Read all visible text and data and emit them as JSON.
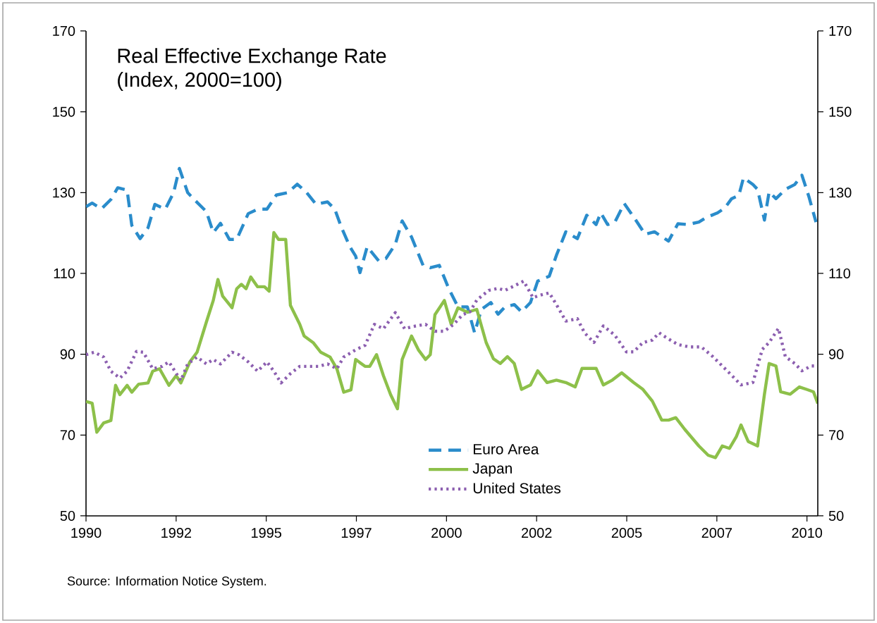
{
  "chart_data": {
    "type": "line",
    "title": "Real Effective Exchange Rate",
    "subtitle": "(Index, 2000=100)",
    "annotations": [
      "Source:  Information Notice System."
    ],
    "xlim": [
      1990,
      2010.3
    ],
    "xticks": [
      1990,
      {
        "value": 1992.5,
        "label": "1992"
      },
      1995,
      {
        "value": 1997.5,
        "label": "1997"
      },
      2000,
      {
        "value": 2002.5,
        "label": "2002"
      },
      2005,
      {
        "value": 2007.5,
        "label": "2007"
      },
      2010
    ],
    "ylim": [
      50,
      170
    ],
    "yticks": [
      50,
      70,
      90,
      110,
      130,
      150,
      170
    ],
    "y2lim": [
      50,
      170
    ],
    "y2ticks": [
      50,
      70,
      90,
      110,
      130,
      150,
      170
    ],
    "grid": false,
    "legend": "bottom",
    "marker": "none",
    "series": [
      {
        "name": "Euro Area",
        "color": "#2a8ccb",
        "line_style": "dashed",
        "x": [
          1990,
          1990.17,
          1990.43,
          1990.69,
          1990.88,
          1991.14,
          1991.27,
          1991.5,
          1991.72,
          1991.91,
          1992.2,
          1992.43,
          1992.59,
          1992.82,
          1993,
          1993.34,
          1993.53,
          1993.73,
          1993.98,
          1994.18,
          1994.5,
          1994.76,
          1995.02,
          1995.28,
          1995.6,
          1995.86,
          1996.12,
          1996.38,
          1996.7,
          1996.9,
          1997.09,
          1997.32,
          1997.48,
          1997.6,
          1997.8,
          1998.12,
          1998.32,
          1998.58,
          1998.77,
          1999.03,
          1999.35,
          1999.55,
          1999.8,
          2000.06,
          2000.32,
          2000.58,
          2000.78,
          2000.97,
          2001.23,
          2001.43,
          2001.62,
          2001.88,
          2002.08,
          2002.33,
          2002.53,
          2002.85,
          2003.05,
          2003.31,
          2003.63,
          2003.89,
          2004.15,
          2004.28,
          2004.47,
          2004.67,
          2004.93,
          2005.25,
          2005.51,
          2005.77,
          2006.16,
          2006.42,
          2006.68,
          2007,
          2007.2,
          2007.52,
          2007.72,
          2007.91,
          2008.11,
          2008.24,
          2008.5,
          2008.63,
          2008.82,
          2008.95,
          2009.14,
          2009.4,
          2009.66,
          2009.86,
          2010.05,
          2010.25
        ],
        "values": [
          126.5,
          127.4,
          126,
          128.3,
          131.2,
          130.6,
          121.9,
          118.6,
          121.3,
          127.1,
          125.9,
          130,
          136,
          130,
          128.3,
          125.3,
          120.1,
          122.4,
          118.4,
          118.4,
          124.8,
          125.9,
          125.9,
          129.4,
          130,
          132.1,
          130,
          127.1,
          127.7,
          125.9,
          121.3,
          116.6,
          114.3,
          110.2,
          116.6,
          113.1,
          113.7,
          117.2,
          123,
          119,
          112,
          111.4,
          112,
          106.3,
          101.7,
          101.7,
          95.3,
          101.1,
          102.8,
          99.9,
          101.7,
          102.3,
          100.5,
          102.8,
          108.1,
          109.3,
          114.5,
          120.3,
          118.6,
          124.4,
          122.1,
          125,
          122.1,
          122.7,
          127.3,
          123.2,
          119.7,
          120.3,
          118,
          122.3,
          122.1,
          122.7,
          123.8,
          125,
          126.2,
          128.5,
          129.3,
          133.7,
          132,
          130.8,
          123.2,
          130.2,
          128.5,
          130.8,
          132,
          134.3,
          129.1,
          122.7
        ]
      },
      {
        "name": "Japan",
        "color": "#8dc04a",
        "line_style": "solid",
        "x": [
          1990,
          1990.17,
          1990.3,
          1990.49,
          1990.69,
          1990.82,
          1990.94,
          1991.14,
          1991.27,
          1991.46,
          1991.72,
          1991.85,
          1992.04,
          1992.3,
          1992.5,
          1992.63,
          1992.88,
          1993.08,
          1993.34,
          1993.53,
          1993.66,
          1993.79,
          1994.05,
          1994.18,
          1994.31,
          1994.44,
          1994.57,
          1994.76,
          1994.95,
          1995.08,
          1995.21,
          1995.34,
          1995.54,
          1995.67,
          1995.93,
          1996.05,
          1996.31,
          1996.51,
          1996.77,
          1996.96,
          1997.15,
          1997.35,
          1997.48,
          1997.74,
          1997.87,
          1998.06,
          1998.25,
          1998.45,
          1998.64,
          1998.77,
          1999.03,
          1999.22,
          1999.42,
          1999.55,
          1999.68,
          1999.94,
          2000.13,
          2000.32,
          2000.58,
          2000.84,
          2001.1,
          2001.3,
          2001.49,
          2001.69,
          2001.88,
          2002.08,
          2002.33,
          2002.53,
          2002.79,
          2003.05,
          2003.31,
          2003.57,
          2003.76,
          2004.15,
          2004.35,
          2004.6,
          2004.86,
          2005.19,
          2005.45,
          2005.71,
          2005.97,
          2006.16,
          2006.36,
          2006.61,
          2007,
          2007.26,
          2007.46,
          2007.65,
          2007.85,
          2008.04,
          2008.17,
          2008.37,
          2008.63,
          2008.82,
          2008.95,
          2009.14,
          2009.27,
          2009.53,
          2009.79,
          2009.99,
          2010.18,
          2010.3
        ],
        "values": [
          78.3,
          77.9,
          70.7,
          73,
          73.6,
          82.3,
          80,
          82.3,
          80.6,
          82.6,
          82.9,
          85.8,
          86.4,
          82.3,
          84.7,
          82.9,
          88.1,
          90.5,
          98,
          103.3,
          108.5,
          104.4,
          101.5,
          106.2,
          107.3,
          106.2,
          109.1,
          106.7,
          106.7,
          105.6,
          120.1,
          118.4,
          118.4,
          102.1,
          97.4,
          94.5,
          92.8,
          90.5,
          89.3,
          86.4,
          80.6,
          81.2,
          88.7,
          87,
          87,
          89.9,
          84.7,
          80,
          76.5,
          88.7,
          94.5,
          91.1,
          88.7,
          89.9,
          99.8,
          103.3,
          97.4,
          101.5,
          100.4,
          101.1,
          92.9,
          88.9,
          87.7,
          89.4,
          87.7,
          81.3,
          82.4,
          85.9,
          83,
          83.6,
          83,
          81.9,
          86.5,
          86.5,
          82.4,
          83.6,
          85.4,
          83,
          81.3,
          78.4,
          73.7,
          73.7,
          74.3,
          71.4,
          67.3,
          65,
          64.4,
          67.3,
          66.7,
          69.6,
          72.5,
          68.4,
          67.3,
          80.1,
          87.7,
          87.1,
          80.7,
          80.1,
          81.9,
          81.3,
          80.7,
          77.8
        ]
      },
      {
        "name": "United States",
        "color": "#8c5fb0",
        "line_style": "dotted",
        "x": [
          1990,
          1990.23,
          1990.49,
          1990.69,
          1990.94,
          1991.14,
          1991.4,
          1991.59,
          1991.85,
          1992.11,
          1992.3,
          1992.63,
          1992.82,
          1993.08,
          1993.34,
          1993.53,
          1993.73,
          1994.05,
          1994.24,
          1994.5,
          1994.76,
          1995.02,
          1995.21,
          1995.41,
          1995.67,
          1995.93,
          1996.18,
          1996.44,
          1996.7,
          1996.96,
          1997.15,
          1997.48,
          1997.74,
          1998,
          1998.25,
          1998.58,
          1998.84,
          1999.09,
          1999.42,
          1999.68,
          1999.94,
          2000.2,
          2000.45,
          2000.65,
          2000.84,
          2001.17,
          2001.43,
          2001.62,
          2001.88,
          2002.14,
          2002.4,
          2002.59,
          2002.85,
          2003.05,
          2003.31,
          2003.63,
          2003.83,
          2004.09,
          2004.35,
          2004.67,
          2004.99,
          2005.19,
          2005.45,
          2005.71,
          2005.9,
          2006.1,
          2006.42,
          2006.74,
          2007.07,
          2007.39,
          2007.65,
          2007.91,
          2008.17,
          2008.5,
          2008.76,
          2008.95,
          2009.21,
          2009.4,
          2009.66,
          2009.86,
          2010.12,
          2010.25
        ],
        "values": [
          89.9,
          90.5,
          89.3,
          85.8,
          84.1,
          85.8,
          90.7,
          90.5,
          86.4,
          87,
          88.1,
          83.5,
          87.6,
          89.3,
          87.6,
          88.7,
          87.6,
          90.5,
          89.9,
          88.1,
          85.8,
          88.1,
          85.8,
          82.9,
          85.2,
          87,
          87,
          87,
          87.6,
          86.4,
          89.3,
          91.1,
          92.2,
          97.4,
          96.3,
          100.3,
          96.3,
          96.9,
          97.4,
          95.7,
          95.7,
          97.4,
          99.8,
          100.5,
          103.4,
          105.8,
          106.3,
          105.8,
          106.9,
          108.1,
          104,
          104.6,
          105.2,
          102.3,
          98.2,
          98.8,
          95.3,
          92.9,
          97,
          94.7,
          90.6,
          90.6,
          92.9,
          93.5,
          95.3,
          94.1,
          92.4,
          91.8,
          91.8,
          89.4,
          87.1,
          84.8,
          82.4,
          83,
          91.2,
          92.9,
          96.4,
          89.4,
          87.7,
          85.9,
          87.1,
          87.1
        ]
      }
    ]
  }
}
